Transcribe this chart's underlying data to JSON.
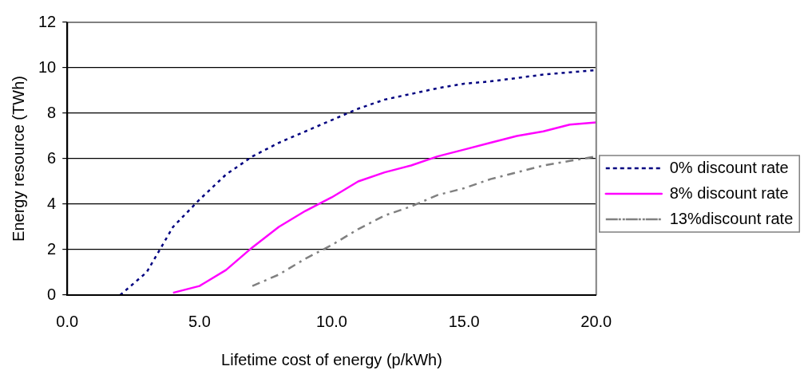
{
  "chart_data": {
    "type": "line",
    "xlabel": "Lifetime cost of energy (p/kWh)",
    "ylabel": "Energy resource (TWh)",
    "xlim": [
      0,
      20
    ],
    "xticks": [
      {
        "value": 0,
        "label": "0.0"
      },
      {
        "value": 5,
        "label": "5.0"
      },
      {
        "value": 10,
        "label": "10.0"
      },
      {
        "value": 15,
        "label": "15.0"
      },
      {
        "value": 20,
        "label": "20.0"
      }
    ],
    "ylim": [
      0,
      12
    ],
    "yticks": [
      0,
      2,
      4,
      6,
      8,
      10,
      12
    ],
    "grid": "y",
    "legend": "right",
    "marker": "none",
    "series": [
      {
        "name": "0% discount rate",
        "color": "#000080",
        "line_style": "dotted",
        "x": [
          2,
          3,
          4,
          5,
          6,
          7,
          8,
          9,
          10,
          11,
          12,
          13,
          14,
          15,
          16,
          17,
          18,
          19,
          20
        ],
        "values": [
          0,
          1.0,
          3.0,
          4.2,
          5.3,
          6.1,
          6.7,
          7.2,
          7.7,
          8.2,
          8.6,
          8.85,
          9.1,
          9.3,
          9.4,
          9.55,
          9.7,
          9.8,
          9.9
        ]
      },
      {
        "name": "8% discount rate",
        "color": "#ff00ff",
        "line_style": "solid",
        "x": [
          4,
          5,
          6,
          7,
          8,
          9,
          10,
          11,
          12,
          13,
          14,
          15,
          16,
          17,
          18,
          19,
          20
        ],
        "values": [
          0.1,
          0.4,
          1.1,
          2.1,
          3.0,
          3.7,
          4.3,
          5.0,
          5.4,
          5.7,
          6.1,
          6.4,
          6.7,
          7.0,
          7.2,
          7.5,
          7.6
        ]
      },
      {
        "name": "13%discount rate",
        "color": "#808080",
        "line_style": "dashed",
        "x": [
          7,
          8,
          9,
          10,
          11,
          12,
          13,
          14,
          15,
          16,
          17,
          18,
          19,
          20
        ],
        "values": [
          0.4,
          0.9,
          1.6,
          2.2,
          2.9,
          3.5,
          3.9,
          4.4,
          4.7,
          5.1,
          5.4,
          5.7,
          5.9,
          6.1
        ]
      }
    ]
  }
}
